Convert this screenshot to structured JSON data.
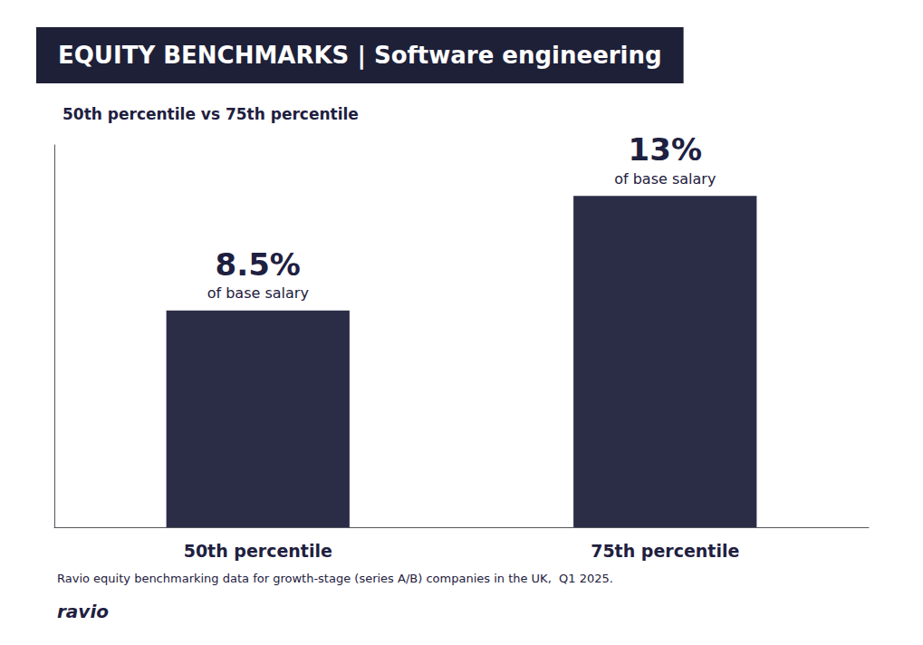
{
  "chart_data": {
    "type": "bar",
    "title": "EQUITY BENCHMARKS | Software engineering",
    "subtitle": "50th percentile vs 75th percentile",
    "categories": [
      "50th percentile",
      "75th percentile"
    ],
    "values": [
      8.5,
      13.0
    ],
    "value_labels": [
      "8.5%",
      "13%"
    ],
    "data_labels": true,
    "color": "#2b2d47",
    "ylim": [
      0,
      15
    ],
    "grid": false,
    "tick_labels": "x",
    "annotations": [
      {
        "text": "of base salary",
        "category": "50th percentile"
      },
      {
        "text": "of base salary",
        "category": "75th percentile"
      },
      {
        "text": "Ravio equity benchmarking data for growth-stage (series A/B) companies in the UK,  Q1 2025."
      },
      {
        "text": "ravio"
      }
    ]
  }
}
